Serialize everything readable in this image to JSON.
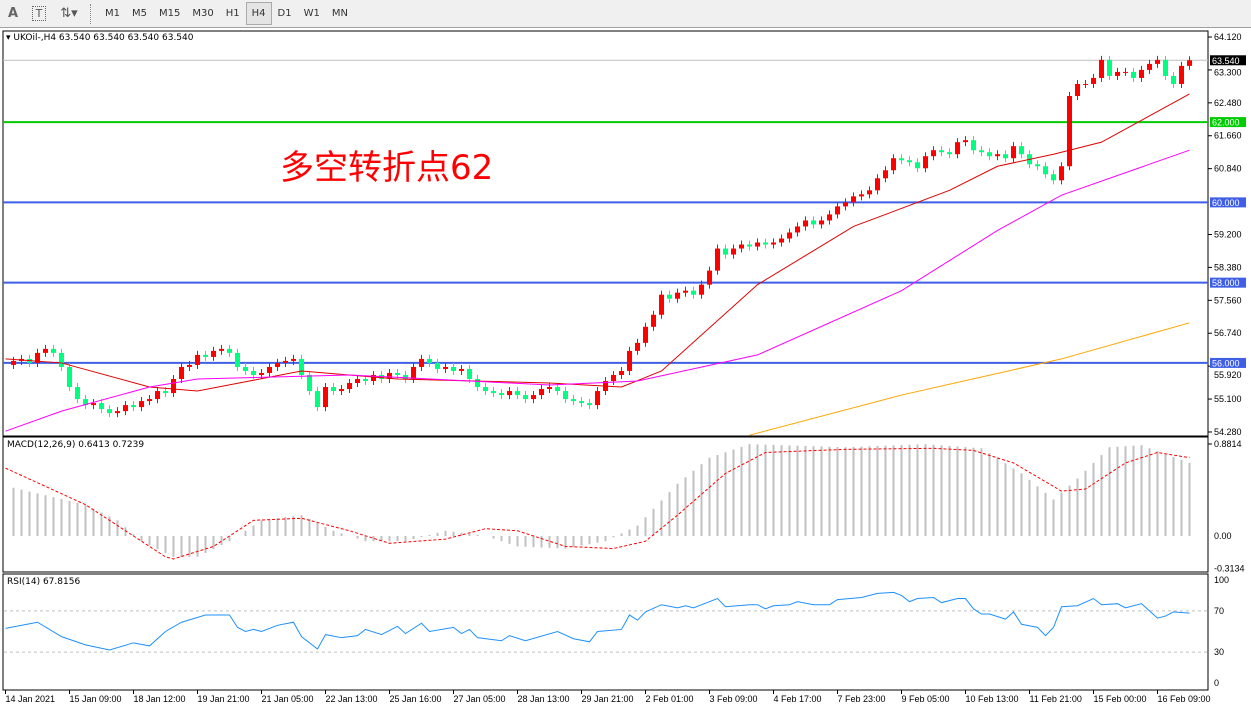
{
  "toolbar": {
    "icons": [
      "text-A-icon",
      "text-T-icon",
      "arrows-dropdown-icon"
    ],
    "text_a": "A",
    "text_t": "T",
    "timeframes": [
      "M1",
      "M5",
      "M15",
      "M30",
      "H1",
      "H4",
      "D1",
      "W1",
      "MN"
    ],
    "active_timeframe": "H4"
  },
  "header": {
    "symbol_line": "UKOil-,H4  63.540 63.540 63.540 63.540"
  },
  "annotation": "多空转折点62",
  "colors": {
    "bull": "#ff0000",
    "bear": "#00ff80",
    "ma_fast": "#e00000",
    "ma_mid": "#ff00ff",
    "ma_slow": "#ffa500",
    "level_blue": "#3f5fe6",
    "level_green": "#00cc00",
    "macd_hist": "#c0c0c0",
    "macd_signal": "#ff0000",
    "rsi": "#1e90ff"
  },
  "chart_data": [
    {
      "type": "candlestick",
      "title": "UKOil-,H4",
      "ylim": [
        54.28,
        64.12
      ],
      "y_ticks": [
        "64.120",
        "63.300",
        "62.480",
        "61.660",
        "60.840",
        "59.200",
        "58.380",
        "57.560",
        "56.740",
        "55.920",
        "55.100",
        "54.280"
      ],
      "closes": [
        55.95,
        56.05,
        56.1,
        56.0,
        56.25,
        56.35,
        56.25,
        55.9,
        55.4,
        55.1,
        54.95,
        55.0,
        54.85,
        54.75,
        54.8,
        54.95,
        54.9,
        55.05,
        55.1,
        55.3,
        55.25,
        55.6,
        55.9,
        55.95,
        56.2,
        56.15,
        56.3,
        56.35,
        56.25,
        55.9,
        55.8,
        55.7,
        55.75,
        55.9,
        56.0,
        56.05,
        56.1,
        55.7,
        55.3,
        54.9,
        55.4,
        55.3,
        55.35,
        55.5,
        55.6,
        55.55,
        55.7,
        55.6,
        55.75,
        55.7,
        55.6,
        55.9,
        56.1,
        56.0,
        55.85,
        55.9,
        55.8,
        55.85,
        55.6,
        55.4,
        55.3,
        55.25,
        55.2,
        55.3,
        55.2,
        55.1,
        55.2,
        55.35,
        55.4,
        55.3,
        55.1,
        55.05,
        55.0,
        54.95,
        55.3,
        55.55,
        55.7,
        55.8,
        56.3,
        56.5,
        56.9,
        57.2,
        57.7,
        57.6,
        57.75,
        57.8,
        57.7,
        57.95,
        58.3,
        58.85,
        58.7,
        58.85,
        58.95,
        58.9,
        59.0,
        58.95,
        59.0,
        59.1,
        59.25,
        59.4,
        59.55,
        59.45,
        59.55,
        59.7,
        59.9,
        60.0,
        60.15,
        60.2,
        60.3,
        60.6,
        60.8,
        61.1,
        61.05,
        61.0,
        60.85,
        61.15,
        61.3,
        61.25,
        61.2,
        61.5,
        61.55,
        61.3,
        61.25,
        61.15,
        61.2,
        61.1,
        61.4,
        61.2,
        60.95,
        60.9,
        60.7,
        60.55,
        60.9,
        62.65,
        62.95,
        62.95,
        63.1,
        63.55,
        63.15,
        63.25,
        63.25,
        63.1,
        63.3,
        63.45,
        63.55,
        63.15,
        62.95,
        63.4,
        63.54
      ],
      "moving_averages": [
        {
          "color_key": "ma_fast",
          "points": [
            [
              0,
              56.1
            ],
            [
              7,
              56.0
            ],
            [
              18,
              55.4
            ],
            [
              24,
              55.3
            ],
            [
              37,
              55.8
            ],
            [
              49,
              55.6
            ],
            [
              68,
              55.5
            ],
            [
              77,
              55.4
            ],
            [
              82,
              55.8
            ],
            [
              94,
              57.95
            ],
            [
              106,
              59.4
            ],
            [
              118,
              60.3
            ],
            [
              124,
              60.9
            ],
            [
              131,
              61.2
            ],
            [
              137,
              61.5
            ],
            [
              148,
              62.7
            ]
          ]
        },
        {
          "color_key": "ma_mid",
          "points": [
            [
              0,
              54.3
            ],
            [
              7,
              54.8
            ],
            [
              18,
              55.4
            ],
            [
              24,
              55.6
            ],
            [
              43,
              55.7
            ],
            [
              68,
              55.45
            ],
            [
              79,
              55.55
            ],
            [
              94,
              56.2
            ],
            [
              112,
              57.8
            ],
            [
              124,
              59.3
            ],
            [
              132,
              60.18
            ],
            [
              148,
              61.3
            ]
          ]
        },
        {
          "color_key": "ma_slow",
          "points": [
            [
              93,
              54.2
            ],
            [
              112,
              55.2
            ],
            [
              132,
              56.1
            ],
            [
              148,
              57.0
            ]
          ]
        }
      ],
      "levels": [
        {
          "value": 62.0,
          "label": "62.000",
          "color_key": "level_green"
        },
        {
          "value": 60.0,
          "label": "60.000",
          "color_key": "level_blue"
        },
        {
          "value": 58.0,
          "label": "58.000",
          "color_key": "level_blue"
        },
        {
          "value": 56.0,
          "label": "56.000",
          "color_key": "level_blue"
        }
      ],
      "current_price": {
        "value": 63.54,
        "label": "63.540"
      }
    },
    {
      "type": "macd",
      "label": "MACD(12,26,9) 0.6413 0.7239",
      "ylim": [
        -0.3134,
        0.8814
      ],
      "y_ticks": [
        "0.8814",
        "0.00",
        "-0.3134"
      ],
      "histogram": [
        [
          0,
          0.48
        ],
        [
          10,
          0.3
        ],
        [
          14,
          0.15
        ],
        [
          17,
          -0.05
        ],
        [
          21,
          -0.2
        ],
        [
          24,
          -0.2
        ],
        [
          28,
          -0.05
        ],
        [
          32,
          0.15
        ],
        [
          37,
          0.2
        ],
        [
          41,
          0.05
        ],
        [
          45,
          -0.05
        ],
        [
          50,
          -0.05
        ],
        [
          55,
          0.05
        ],
        [
          60,
          0.0
        ],
        [
          64,
          -0.1
        ],
        [
          70,
          -0.12
        ],
        [
          75,
          -0.05
        ],
        [
          79,
          0.1
        ],
        [
          84,
          0.5
        ],
        [
          88,
          0.75
        ],
        [
          93,
          0.88
        ],
        [
          105,
          0.85
        ],
        [
          115,
          0.88
        ],
        [
          122,
          0.84
        ],
        [
          127,
          0.6
        ],
        [
          131,
          0.35
        ],
        [
          134,
          0.55
        ],
        [
          138,
          0.85
        ],
        [
          142,
          0.87
        ],
        [
          148,
          0.7
        ]
      ],
      "signal": [
        [
          0,
          0.65
        ],
        [
          10,
          0.3
        ],
        [
          16,
          0.0
        ],
        [
          20,
          -0.2
        ],
        [
          21,
          -0.22
        ],
        [
          26,
          -0.1
        ],
        [
          31,
          0.15
        ],
        [
          37,
          0.17
        ],
        [
          43,
          0.05
        ],
        [
          48,
          -0.07
        ],
        [
          55,
          -0.03
        ],
        [
          60,
          0.07
        ],
        [
          64,
          0.05
        ],
        [
          70,
          -0.1
        ],
        [
          76,
          -0.12
        ],
        [
          80,
          -0.05
        ],
        [
          84,
          0.2
        ],
        [
          90,
          0.6
        ],
        [
          95,
          0.8
        ],
        [
          105,
          0.83
        ],
        [
          116,
          0.84
        ],
        [
          121,
          0.82
        ],
        [
          126,
          0.7
        ],
        [
          132,
          0.43
        ],
        [
          135,
          0.45
        ],
        [
          140,
          0.7
        ],
        [
          144,
          0.8
        ],
        [
          148,
          0.75
        ]
      ]
    },
    {
      "type": "line",
      "label": "RSI(14) 67.8156",
      "ylim": [
        0,
        100
      ],
      "y_ticks": [
        "100",
        "70",
        "30",
        "0"
      ],
      "levels": [
        70,
        30
      ],
      "values": [
        [
          0,
          53
        ],
        [
          4,
          59
        ],
        [
          7,
          45
        ],
        [
          10,
          37
        ],
        [
          13,
          32
        ],
        [
          16,
          39
        ],
        [
          18,
          36
        ],
        [
          20,
          50
        ],
        [
          22,
          59
        ],
        [
          25,
          66
        ],
        [
          28,
          66
        ],
        [
          29,
          54
        ],
        [
          30,
          50
        ],
        [
          31,
          52
        ],
        [
          32,
          50
        ],
        [
          34,
          56
        ],
        [
          36,
          59
        ],
        [
          37,
          45
        ],
        [
          39,
          33
        ],
        [
          40,
          47
        ],
        [
          42,
          44
        ],
        [
          44,
          46
        ],
        [
          45,
          52
        ],
        [
          47,
          47
        ],
        [
          49,
          55
        ],
        [
          50,
          48
        ],
        [
          52,
          58
        ],
        [
          53,
          50
        ],
        [
          56,
          54
        ],
        [
          57,
          48
        ],
        [
          58,
          52
        ],
        [
          59,
          44
        ],
        [
          62,
          41
        ],
        [
          63,
          46
        ],
        [
          65,
          41
        ],
        [
          69,
          50
        ],
        [
          71,
          43
        ],
        [
          73,
          40
        ],
        [
          74,
          50
        ],
        [
          77,
          52
        ],
        [
          78,
          66
        ],
        [
          79,
          61
        ],
        [
          80,
          69
        ],
        [
          82,
          76
        ],
        [
          84,
          73
        ],
        [
          85,
          75
        ],
        [
          86,
          73
        ],
        [
          89,
          82
        ],
        [
          90,
          74
        ],
        [
          93,
          76
        ],
        [
          94,
          76
        ],
        [
          95,
          72
        ],
        [
          96,
          75
        ],
        [
          98,
          76
        ],
        [
          99,
          79
        ],
        [
          101,
          76
        ],
        [
          103,
          76
        ],
        [
          104,
          81
        ],
        [
          107,
          83
        ],
        [
          109,
          87
        ],
        [
          111,
          88
        ],
        [
          112,
          85
        ],
        [
          113,
          79
        ],
        [
          114,
          82
        ],
        [
          116,
          83
        ],
        [
          117,
          78
        ],
        [
          119,
          82
        ],
        [
          120,
          82
        ],
        [
          121,
          72
        ],
        [
          122,
          67
        ],
        [
          123,
          67
        ],
        [
          125,
          62
        ],
        [
          126,
          69
        ],
        [
          127,
          57
        ],
        [
          129,
          54
        ],
        [
          130,
          46
        ],
        [
          131,
          54
        ],
        [
          132,
          74
        ],
        [
          134,
          75
        ],
        [
          136,
          82
        ],
        [
          137,
          76
        ],
        [
          139,
          77
        ],
        [
          140,
          73
        ],
        [
          142,
          77
        ],
        [
          144,
          63
        ],
        [
          145,
          65
        ],
        [
          146,
          69
        ],
        [
          148,
          67.8
        ]
      ]
    }
  ],
  "x_axis": {
    "labels": [
      "14 Jan 2021",
      "15 Jan 09:00",
      "18 Jan 12:00",
      "19 Jan 21:00",
      "21 Jan 05:00",
      "22 Jan 13:00",
      "25 Jan 16:00",
      "27 Jan 05:00",
      "28 Jan 13:00",
      "29 Jan 21:00",
      "2 Feb 01:00",
      "3 Feb 09:00",
      "4 Feb 17:00",
      "7 Feb 23:00",
      "9 Feb 05:00",
      "10 Feb 13:00",
      "11 Feb 21:00",
      "15 Feb 00:00",
      "16 Feb 09:00"
    ],
    "bars_per_label": 8
  }
}
